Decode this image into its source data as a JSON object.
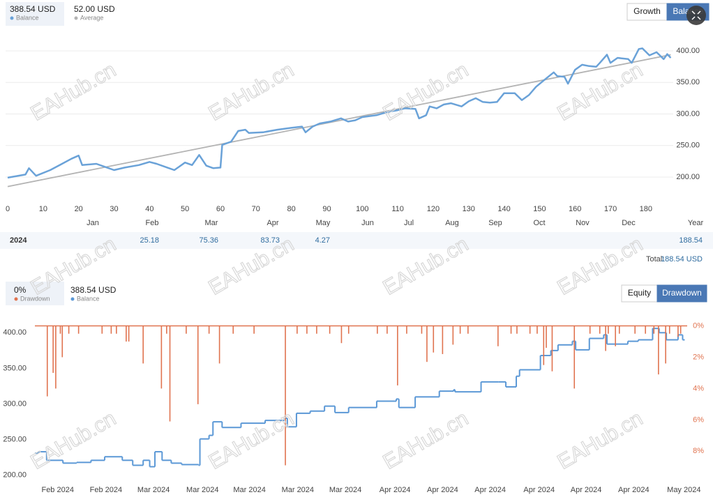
{
  "watermark": "EAHub.cn",
  "chart_data": [
    {
      "type": "line",
      "legend_values": [
        "388.54 USD",
        "52.00 USD"
      ],
      "buttons": [
        "Growth",
        "Balance"
      ],
      "active_button": 1,
      "xlim": [
        -0.6,
        187.7
      ],
      "xticks": [
        0,
        10,
        20,
        30,
        40,
        50,
        60,
        70,
        80,
        90,
        100,
        110,
        120,
        130,
        140,
        150,
        160,
        170,
        180
      ],
      "ylim": [
        162.4,
        431
      ],
      "yticks": [
        {
          "value": 200,
          "label": "200.00"
        },
        {
          "value": 250,
          "label": "250.00"
        },
        {
          "value": 300,
          "label": "300.00"
        },
        {
          "value": 350,
          "label": "350.00"
        },
        {
          "value": 400,
          "label": "400.00"
        }
      ],
      "grid": true,
      "series": [
        {
          "name": "Balance",
          "color": "#6aa2d8",
          "x": [
            0,
            5,
            6,
            8,
            12,
            15,
            18,
            20,
            21,
            25,
            28,
            30,
            33,
            37,
            40,
            42,
            45,
            47,
            50,
            52,
            54,
            56,
            58,
            60,
            60.5,
            63,
            65,
            67,
            68,
            72,
            76,
            80,
            83,
            84,
            86,
            88,
            91,
            94,
            96,
            98,
            100,
            104,
            107,
            110,
            112,
            115,
            116,
            118,
            119,
            121,
            123,
            125,
            128,
            130,
            132,
            134,
            136,
            138,
            140,
            143,
            145,
            147,
            149,
            152,
            154,
            155,
            157,
            158,
            160,
            162,
            164,
            166,
            167,
            169,
            170,
            172,
            175,
            176,
            178,
            179,
            181,
            183,
            185,
            186,
            187
          ],
          "values": [
            199,
            204,
            214,
            202,
            211,
            220,
            229,
            234,
            219,
            221,
            215,
            211,
            215,
            219,
            224,
            221,
            215,
            211,
            223,
            219,
            235,
            218,
            214,
            215,
            251,
            256,
            273,
            275,
            270,
            271,
            275,
            278,
            280,
            271,
            280,
            285,
            288,
            293,
            288,
            290,
            295,
            298,
            303,
            306,
            309,
            308,
            293,
            298,
            312,
            309,
            315,
            317,
            312,
            320,
            325,
            319,
            318,
            319,
            333,
            333,
            322,
            330,
            343,
            357,
            366,
            360,
            359,
            348,
            370,
            378,
            376,
            375,
            381,
            394,
            381,
            389,
            387,
            381,
            403,
            404,
            393,
            398,
            387,
            395,
            389
          ]
        },
        {
          "name": "Average",
          "color": "#b3b3b3",
          "x": [
            0,
            187
          ],
          "values": [
            185,
            394
          ]
        }
      ]
    },
    {
      "type": "line",
      "legend_values": [
        "0%",
        "388.54 USD"
      ],
      "buttons": [
        "Equity",
        "Drawdown"
      ],
      "active_button": 1,
      "xlim": [
        0,
        100
      ],
      "xticks": [
        {
          "value": 3.5,
          "label": "Feb 2024"
        },
        {
          "value": 10.9,
          "label": "Feb 2024"
        },
        {
          "value": 18.2,
          "label": "Mar 2024"
        },
        {
          "value": 25.7,
          "label": "Mar 2024"
        },
        {
          "value": 32.9,
          "label": "Mar 2024"
        },
        {
          "value": 40.3,
          "label": "Mar 2024"
        },
        {
          "value": 47.6,
          "label": "Mar 2024"
        },
        {
          "value": 55.2,
          "label": "Apr 2024"
        },
        {
          "value": 62.5,
          "label": "Apr 2024"
        },
        {
          "value": 69.8,
          "label": "Apr 2024"
        },
        {
          "value": 77.3,
          "label": "Apr 2024"
        },
        {
          "value": 84.5,
          "label": "Apr 2024"
        },
        {
          "value": 91.8,
          "label": "Apr 2024"
        },
        {
          "value": 99.5,
          "label": "May 2024"
        }
      ],
      "ylim": [
        192,
        414
      ],
      "yticks": [
        {
          "value": 200,
          "label": "200.00"
        },
        {
          "value": 250,
          "label": "250.00"
        },
        {
          "value": 300,
          "label": "300.00"
        },
        {
          "value": 350,
          "label": "350.00"
        },
        {
          "value": 400,
          "label": "400.00"
        }
      ],
      "y2lim": [
        9.9,
        -0.2
      ],
      "y2ticks": [
        {
          "value": 0,
          "label": "0%"
        },
        {
          "value": 2,
          "label": "2%"
        },
        {
          "value": 4,
          "label": "4%"
        },
        {
          "value": 6,
          "label": "6%"
        },
        {
          "value": 8,
          "label": "8%"
        }
      ],
      "grid": false,
      "series": [
        {
          "name": "Drawdown",
          "color": "#e0734f",
          "type": "bar",
          "axis": "y2",
          "x": [
            1.9,
            2.8,
            3.2,
            3.9,
            4.2,
            5.2,
            6.7,
            10.3,
            11.7,
            12.5,
            14.0,
            14.4,
            16.6,
            19.4,
            20.2,
            20.7,
            23.2,
            25.0,
            26.7,
            28.3,
            30.4,
            33.6,
            38.4,
            40.2,
            41.7,
            43.2,
            45.2,
            47.0,
            48.1,
            52.5,
            54.0,
            55.6,
            57.0,
            59.3,
            60.1,
            61.1,
            62.5,
            64.1,
            65.2,
            66.4,
            71.0,
            73.0,
            73.9,
            75.9,
            77.0,
            78.0,
            78.4,
            79.3,
            82.7,
            85.1,
            86.6,
            87.5,
            87.9,
            89.0,
            89.6,
            92.0,
            93.6,
            94.9,
            95.6,
            96.7,
            97.3,
            98.6,
            99.0
          ],
          "values": [
            4.5,
            3.0,
            4.0,
            0.5,
            2.0,
            0.5,
            0.5,
            0.5,
            0.5,
            0.5,
            1.0,
            1.0,
            2.4,
            4.0,
            0.5,
            6.1,
            0.5,
            5.0,
            0.5,
            2.4,
            0.5,
            0.5,
            8.9,
            0.5,
            0.5,
            0.5,
            0.5,
            1.1,
            0.5,
            0.5,
            0.5,
            3.8,
            0.5,
            0.5,
            2.3,
            1.7,
            1.8,
            1.2,
            0.5,
            0.5,
            1.3,
            0.5,
            0.5,
            0.5,
            0.5,
            2.5,
            1.4,
            2.9,
            4.0,
            0.5,
            0.5,
            1.6,
            0.5,
            1.3,
            0.5,
            0.5,
            0.5,
            0.5,
            3.1,
            2.4,
            0.5,
            0.7,
            0.5
          ]
        },
        {
          "name": "Balance",
          "color": "#5b98d6",
          "type": "step",
          "x": [
            0,
            0.5,
            1.8,
            4.3,
            6.4,
            8.6,
            10.7,
            13.4,
            15.0,
            16.6,
            17.6,
            18.4,
            19.5,
            20.9,
            22.5,
            25.1,
            25.3,
            26.7,
            27.3,
            28.7,
            31.6,
            35.3,
            38.3,
            38.7,
            40.1,
            42.2,
            44.4,
            46.0,
            48.1,
            52.4,
            55.4,
            55.8,
            58.3,
            62.0,
            64.2,
            64.4,
            68.4,
            71.1,
            72.2,
            73.8,
            74.3,
            77.5,
            79.1,
            80.2,
            82.4,
            82.9,
            85.0,
            87.2,
            87.7,
            90.9,
            92.5,
            94.7,
            95.7,
            96.8,
            98.6,
            99.3
          ],
          "values": [
            231,
            233,
            221,
            217,
            218,
            221,
            226,
            221,
            214,
            221,
            212,
            233,
            221,
            217,
            215,
            214,
            251,
            256,
            275,
            267,
            273,
            277,
            280,
            268,
            287,
            290,
            297,
            288,
            295,
            304,
            307,
            295,
            310,
            318,
            320,
            317,
            331,
            331,
            324,
            339,
            348,
            368,
            375,
            383,
            388,
            376,
            392,
            397,
            384,
            388,
            390,
            406,
            400,
            390,
            397,
            390
          ]
        }
      ]
    }
  ],
  "returns_table": {
    "columns": [
      "Jan",
      "Feb",
      "Mar",
      "Apr",
      "May",
      "Jun",
      "Jul",
      "Aug",
      "Sep",
      "Oct",
      "Nov",
      "Dec",
      "Year"
    ],
    "row_label": "2024",
    "values": [
      null,
      25.18,
      75.36,
      83.73,
      4.27,
      null,
      null,
      null,
      null,
      null,
      null,
      null,
      188.54
    ],
    "total_label": "Total:",
    "total": "188.54 USD"
  }
}
